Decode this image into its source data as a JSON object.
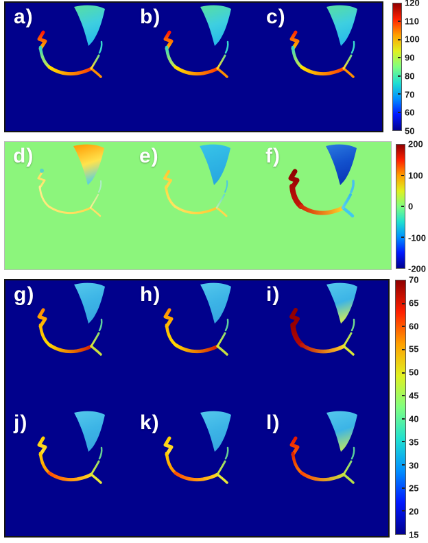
{
  "figure_title": "multi-panel jet-colormap heatmap figure",
  "colormap_jet_stops": [
    "#00008f",
    "#0018ff",
    "#0090ff",
    "#20e0d0",
    "#80ff80",
    "#e0f020",
    "#ffa000",
    "#ff2000",
    "#900000"
  ],
  "chart_data": [
    {
      "type": "heatmap",
      "panels": [
        "a)",
        "b)",
        "c)"
      ],
      "colormap": "jet",
      "colorbar": {
        "min": 50,
        "max": 120,
        "ticks": [
          120,
          110,
          100,
          90,
          80,
          70,
          60,
          50
        ]
      },
      "background": "#01018c",
      "description": "three near-identical vessel/flap maps, values ~50-120"
    },
    {
      "type": "heatmap",
      "panels": [
        "d)",
        "e)",
        "f)"
      ],
      "colormap": "jet",
      "colorbar": {
        "min": -200,
        "max": 200,
        "ticks": [
          200,
          100,
          0,
          -100,
          -200
        ]
      },
      "background": "#8cf57c",
      "description": "difference maps around 0; d mild positive flap, e mild, f strong positive vessel / negative flap"
    },
    {
      "type": "heatmap",
      "panels": [
        "g)",
        "h)",
        "i)",
        "j)",
        "k)",
        "l)"
      ],
      "colormap": "jet",
      "colorbar": {
        "min": 15,
        "max": 70,
        "ticks": [
          70,
          65,
          60,
          55,
          50,
          45,
          40,
          35,
          30,
          25,
          20,
          15
        ]
      },
      "background": "#01018c",
      "description": "six vessel/flap maps, values ~15-70, panel i with saturated dark-red vessel"
    }
  ],
  "groups": [
    {
      "name": "top-row",
      "background": "#01018c",
      "colorbar_ticks": [
        "120",
        "110",
        "100",
        "90",
        "80",
        "70",
        "60",
        "50"
      ],
      "panels": [
        {
          "label": "a)",
          "flap": [
            "#58dfa0",
            "#3ecfe0",
            "#28bce8"
          ],
          "spike": [
            "#ff1800",
            "#ffc000"
          ],
          "upper": [
            "#38d8c0",
            "#c8e848"
          ],
          "bottom": [
            "#ffe000",
            "#ff4000"
          ],
          "spur": "#ff9000",
          "branch": [
            "#ffd428",
            "#7adf86"
          ],
          "tip": "#38d8cc",
          "dot": "none",
          "widths": [
            5,
            4.5,
            5,
            3.5,
            3,
            2.5
          ]
        },
        {
          "label": "b)",
          "flap": [
            "#58dfa0",
            "#3ecfe0",
            "#28bce8"
          ],
          "spike": [
            "#ff1800",
            "#ffc000"
          ],
          "upper": [
            "#38d8c0",
            "#c8e848"
          ],
          "bottom": [
            "#ffe000",
            "#ff4000"
          ],
          "spur": "#ff9000",
          "branch": [
            "#ffd428",
            "#7adf86"
          ],
          "tip": "#38d8cc",
          "dot": "none",
          "widths": [
            5,
            4.5,
            5,
            3.5,
            3,
            2.5
          ]
        },
        {
          "label": "c)",
          "flap": [
            "#58dfa0",
            "#3ecfe0",
            "#28bce8"
          ],
          "spike": [
            "#ff2800",
            "#ffc800"
          ],
          "upper": [
            "#38d8c0",
            "#c8e848"
          ],
          "bottom": [
            "#ffe000",
            "#ff4000"
          ],
          "spur": "#ff9000",
          "branch": [
            "#ffd428",
            "#7adf86"
          ],
          "tip": "#38d8cc",
          "dot": "none",
          "widths": [
            5,
            4.5,
            5,
            3.5,
            3,
            2.5
          ]
        }
      ]
    },
    {
      "name": "middle-row",
      "background": "#8cf57c",
      "colorbar_ticks": [
        "200",
        "100",
        "0",
        "-100",
        "-200"
      ],
      "panels": [
        {
          "label": "d)",
          "flap": [
            "#ff9800",
            "#ffe34d",
            "#60d0d8"
          ],
          "spike": [
            "#ffe060",
            "#ffe878"
          ],
          "upper": [
            "#ffee90",
            "#ffe878"
          ],
          "bottom": [
            "#ffe878",
            "#ffd84d"
          ],
          "spur": "#ffe068",
          "branch": [
            "#ffee90",
            "#d0f0a0"
          ],
          "tip": "#b0ecc8",
          "dot": "#58d4c8",
          "widths": [
            3,
            2.8,
            3,
            2.5,
            2.2,
            2
          ]
        },
        {
          "label": "e)",
          "flap": [
            "#38c4e8",
            "#2eb4e4",
            "#28a8e0"
          ],
          "spike": [
            "#ffc830",
            "#ffdc50"
          ],
          "upper": [
            "#ffd840",
            "#ffe460"
          ],
          "bottom": [
            "#ffe460",
            "#ffc830"
          ],
          "spur": "#ffd84d",
          "branch": [
            "#c0ecb0",
            "#66d8cc"
          ],
          "tip": "#4cc8e0",
          "dot": "none",
          "widths": [
            4,
            3.5,
            3.5,
            3,
            2.5,
            2
          ]
        },
        {
          "label": "f)",
          "flap": [
            "#2a7ae0",
            "#1250cc",
            "#0a38b8"
          ],
          "spike": [
            "#8f0000",
            "#a80808"
          ],
          "upper": [
            "#a80808",
            "#c01808"
          ],
          "bottom": [
            "#d42808",
            "#ffd028"
          ],
          "spur": "#40c8f0",
          "branch": [
            "#58d0f0",
            "#38b8ec"
          ],
          "tip": "#48c0ee",
          "dot": "none",
          "widths": [
            7,
            8,
            6,
            4.5,
            4,
            3.5
          ]
        }
      ]
    },
    {
      "name": "bottom-grid",
      "background": "#01018c",
      "colorbar_ticks": [
        "70",
        "65",
        "60",
        "55",
        "50",
        "45",
        "40",
        "35",
        "30",
        "25",
        "20",
        "15"
      ],
      "panels": [
        {
          "label": "g)",
          "flap": [
            "#54c8ec",
            "#3cb4e6",
            "#36a8e0"
          ],
          "spike": [
            "#ff8c00",
            "#ffc000"
          ],
          "upper": [
            "#ffb800",
            "#ffd800"
          ],
          "bottom": [
            "#ffd800",
            "#d42000"
          ],
          "spur": "#c8e040",
          "branch": [
            "#d8e838",
            "#90dc70"
          ],
          "tip": "#60cf9f",
          "dot": "none",
          "widths": [
            5,
            4.5,
            5,
            3.5,
            3,
            2.5
          ]
        },
        {
          "label": "h)",
          "flap": [
            "#54c8ec",
            "#3cb4e6",
            "#36a8e0"
          ],
          "spike": [
            "#ff8c00",
            "#ffc000"
          ],
          "upper": [
            "#ffb800",
            "#ffd800"
          ],
          "bottom": [
            "#ffd800",
            "#d42000"
          ],
          "spur": "#c8e040",
          "branch": [
            "#d8e838",
            "#90dc70"
          ],
          "tip": "#60cf9f",
          "dot": "none",
          "widths": [
            5,
            4.5,
            5,
            3.5,
            3,
            2.5
          ]
        },
        {
          "label": "i)",
          "flap": [
            "#54c8ec",
            "#3cb4e6",
            "#c8e860"
          ],
          "spike": [
            "#8f0000",
            "#a00000"
          ],
          "upper": [
            "#980000",
            "#b00808"
          ],
          "bottom": [
            "#c01808",
            "#ffd028"
          ],
          "spur": "#d8e838",
          "branch": [
            "#e0e830",
            "#a8e060"
          ],
          "tip": "#70d890",
          "dot": "none",
          "widths": [
            6,
            7.5,
            5.5,
            3.5,
            3,
            2.5
          ]
        },
        {
          "label": "j)",
          "flap": [
            "#54c8ec",
            "#3cb4e6",
            "#36a8e0"
          ],
          "spike": [
            "#ffd000",
            "#ffe040"
          ],
          "upper": [
            "#ffd000",
            "#ff9000"
          ],
          "bottom": [
            "#ff5000",
            "#ffd820"
          ],
          "spur": "#e8e838",
          "branch": [
            "#d8e838",
            "#98dc68"
          ],
          "tip": "#68d094",
          "dot": "none",
          "widths": [
            5,
            4.5,
            5,
            3.5,
            3,
            2.5
          ]
        },
        {
          "label": "k)",
          "flap": [
            "#54c8ec",
            "#3cb4e6",
            "#36a8e0"
          ],
          "spike": [
            "#ffd000",
            "#ffe040"
          ],
          "upper": [
            "#ffd000",
            "#ff9000"
          ],
          "bottom": [
            "#ff5000",
            "#ffd820"
          ],
          "spur": "#e8e838",
          "branch": [
            "#d8e838",
            "#98dc68"
          ],
          "tip": "#68d094",
          "dot": "none",
          "widths": [
            5,
            4.5,
            5,
            3.5,
            3,
            2.5
          ]
        },
        {
          "label": "l)",
          "flap": [
            "#54c8ec",
            "#3cb4e6",
            "#b0e070"
          ],
          "spike": [
            "#e81800",
            "#ff6000"
          ],
          "upper": [
            "#e02000",
            "#ff7800"
          ],
          "bottom": [
            "#ff4800",
            "#c8e040"
          ],
          "spur": "#b8e048",
          "branch": [
            "#c8e840",
            "#88d878"
          ],
          "tip": "#58cc9c",
          "dot": "none",
          "widths": [
            5,
            4.5,
            5,
            3.5,
            3,
            2.5
          ]
        }
      ]
    }
  ]
}
